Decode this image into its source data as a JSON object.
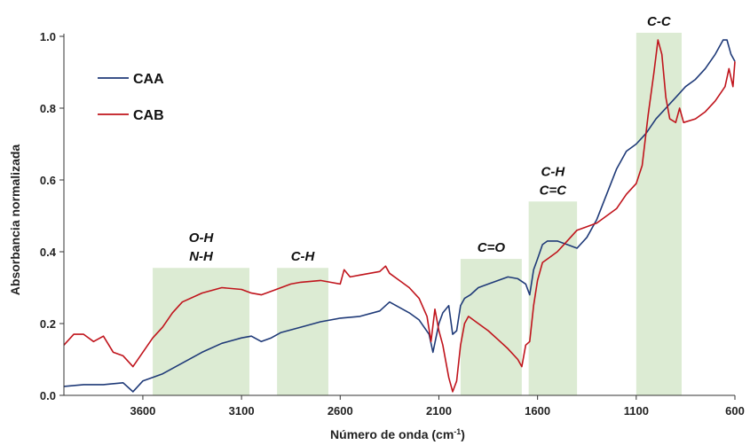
{
  "chart_data": {
    "type": "line",
    "title": "",
    "xlabel": "Número de onda (cm",
    "xlabel_sup": "-1",
    "xlabel_close": ")",
    "ylabel": "Absorbancia normalizada",
    "xlim": [
      4000,
      600
    ],
    "ylim": [
      0,
      1.0
    ],
    "x_reversed": true,
    "xticks": [
      3600,
      3100,
      2600,
      2100,
      1600,
      1100,
      600
    ],
    "xtick_labels": [
      "3600",
      "3100",
      "2600",
      "2100",
      "1600",
      "1100",
      "600"
    ],
    "yticks": [
      0.0,
      0.2,
      0.4,
      0.6,
      0.8,
      1.0
    ],
    "ytick_labels": [
      "0.0",
      "0.2",
      "0.4",
      "0.6",
      "0.8",
      "1.0"
    ],
    "grid": false,
    "legend_position": "top-left",
    "bands": [
      {
        "from": 3550,
        "to": 3060,
        "top": 0.355,
        "label_lines": [
          "O-H",
          "N-H"
        ]
      },
      {
        "from": 2920,
        "to": 2660,
        "top": 0.355,
        "label_lines": [
          "C-H"
        ]
      },
      {
        "from": 1990,
        "to": 1680,
        "top": 0.38,
        "label_lines": [
          "C=O"
        ]
      },
      {
        "from": 1645,
        "to": 1400,
        "top": 0.54,
        "label_lines": [
          "C-H",
          "C=C"
        ]
      },
      {
        "from": 1100,
        "to": 870,
        "top": 1.01,
        "label_lines": [
          "C-C"
        ]
      }
    ],
    "series": [
      {
        "name": "CAA",
        "color": "#1f3a78",
        "points": [
          [
            4000,
            0.025
          ],
          [
            3900,
            0.03
          ],
          [
            3800,
            0.03
          ],
          [
            3700,
            0.035
          ],
          [
            3650,
            0.01
          ],
          [
            3600,
            0.04
          ],
          [
            3550,
            0.05
          ],
          [
            3500,
            0.06
          ],
          [
            3400,
            0.09
          ],
          [
            3300,
            0.12
          ],
          [
            3200,
            0.145
          ],
          [
            3100,
            0.16
          ],
          [
            3050,
            0.165
          ],
          [
            3000,
            0.15
          ],
          [
            2950,
            0.16
          ],
          [
            2900,
            0.175
          ],
          [
            2800,
            0.19
          ],
          [
            2700,
            0.205
          ],
          [
            2600,
            0.215
          ],
          [
            2500,
            0.22
          ],
          [
            2400,
            0.235
          ],
          [
            2350,
            0.26
          ],
          [
            2300,
            0.245
          ],
          [
            2250,
            0.23
          ],
          [
            2200,
            0.21
          ],
          [
            2150,
            0.17
          ],
          [
            2130,
            0.12
          ],
          [
            2100,
            0.2
          ],
          [
            2080,
            0.23
          ],
          [
            2050,
            0.25
          ],
          [
            2030,
            0.17
          ],
          [
            2010,
            0.18
          ],
          [
            1990,
            0.25
          ],
          [
            1970,
            0.27
          ],
          [
            1940,
            0.28
          ],
          [
            1900,
            0.3
          ],
          [
            1850,
            0.31
          ],
          [
            1800,
            0.32
          ],
          [
            1750,
            0.33
          ],
          [
            1700,
            0.325
          ],
          [
            1660,
            0.31
          ],
          [
            1640,
            0.28
          ],
          [
            1620,
            0.35
          ],
          [
            1600,
            0.38
          ],
          [
            1575,
            0.42
          ],
          [
            1550,
            0.43
          ],
          [
            1500,
            0.43
          ],
          [
            1450,
            0.42
          ],
          [
            1400,
            0.41
          ],
          [
            1350,
            0.44
          ],
          [
            1300,
            0.49
          ],
          [
            1250,
            0.56
          ],
          [
            1200,
            0.63
          ],
          [
            1150,
            0.68
          ],
          [
            1100,
            0.7
          ],
          [
            1050,
            0.73
          ],
          [
            1000,
            0.77
          ],
          [
            950,
            0.8
          ],
          [
            900,
            0.83
          ],
          [
            850,
            0.86
          ],
          [
            800,
            0.88
          ],
          [
            750,
            0.91
          ],
          [
            700,
            0.95
          ],
          [
            660,
            0.99
          ],
          [
            640,
            0.99
          ],
          [
            620,
            0.95
          ],
          [
            600,
            0.93
          ]
        ]
      },
      {
        "name": "CAB",
        "color": "#c0141c",
        "points": [
          [
            4000,
            0.14
          ],
          [
            3950,
            0.17
          ],
          [
            3900,
            0.17
          ],
          [
            3850,
            0.15
          ],
          [
            3800,
            0.165
          ],
          [
            3750,
            0.12
          ],
          [
            3700,
            0.11
          ],
          [
            3650,
            0.08
          ],
          [
            3600,
            0.12
          ],
          [
            3550,
            0.16
          ],
          [
            3500,
            0.19
          ],
          [
            3450,
            0.23
          ],
          [
            3400,
            0.26
          ],
          [
            3300,
            0.285
          ],
          [
            3200,
            0.3
          ],
          [
            3100,
            0.295
          ],
          [
            3050,
            0.285
          ],
          [
            3000,
            0.28
          ],
          [
            2950,
            0.29
          ],
          [
            2900,
            0.3
          ],
          [
            2850,
            0.31
          ],
          [
            2800,
            0.315
          ],
          [
            2700,
            0.32
          ],
          [
            2650,
            0.315
          ],
          [
            2600,
            0.31
          ],
          [
            2580,
            0.35
          ],
          [
            2550,
            0.33
          ],
          [
            2500,
            0.335
          ],
          [
            2450,
            0.34
          ],
          [
            2400,
            0.345
          ],
          [
            2370,
            0.36
          ],
          [
            2350,
            0.34
          ],
          [
            2300,
            0.32
          ],
          [
            2250,
            0.3
          ],
          [
            2200,
            0.27
          ],
          [
            2160,
            0.22
          ],
          [
            2140,
            0.15
          ],
          [
            2120,
            0.24
          ],
          [
            2100,
            0.18
          ],
          [
            2080,
            0.14
          ],
          [
            2050,
            0.05
          ],
          [
            2030,
            0.01
          ],
          [
            2010,
            0.04
          ],
          [
            1990,
            0.14
          ],
          [
            1970,
            0.2
          ],
          [
            1950,
            0.22
          ],
          [
            1900,
            0.2
          ],
          [
            1850,
            0.18
          ],
          [
            1800,
            0.155
          ],
          [
            1750,
            0.13
          ],
          [
            1700,
            0.1
          ],
          [
            1680,
            0.08
          ],
          [
            1660,
            0.14
          ],
          [
            1640,
            0.15
          ],
          [
            1620,
            0.25
          ],
          [
            1600,
            0.32
          ],
          [
            1575,
            0.37
          ],
          [
            1550,
            0.38
          ],
          [
            1500,
            0.4
          ],
          [
            1450,
            0.43
          ],
          [
            1400,
            0.46
          ],
          [
            1350,
            0.47
          ],
          [
            1300,
            0.48
          ],
          [
            1250,
            0.5
          ],
          [
            1200,
            0.52
          ],
          [
            1150,
            0.56
          ],
          [
            1100,
            0.59
          ],
          [
            1070,
            0.64
          ],
          [
            1040,
            0.78
          ],
          [
            1010,
            0.9
          ],
          [
            990,
            0.99
          ],
          [
            970,
            0.95
          ],
          [
            950,
            0.83
          ],
          [
            930,
            0.77
          ],
          [
            900,
            0.76
          ],
          [
            880,
            0.8
          ],
          [
            860,
            0.76
          ],
          [
            800,
            0.77
          ],
          [
            750,
            0.79
          ],
          [
            700,
            0.82
          ],
          [
            650,
            0.86
          ],
          [
            630,
            0.91
          ],
          [
            610,
            0.86
          ],
          [
            600,
            0.93
          ]
        ]
      }
    ]
  }
}
